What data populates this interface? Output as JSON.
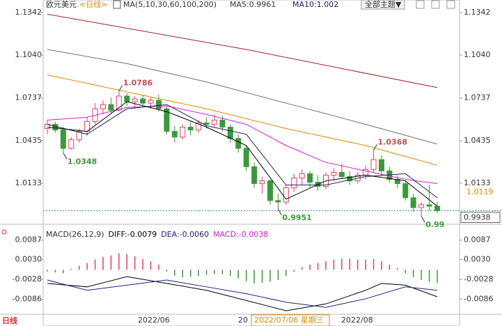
{
  "chart_data": {
    "type": "candlestick",
    "title": "欧元美元",
    "period_tag": "<日线>",
    "ma_header": [
      "MA(5,10,30,60,100,200)",
      "MA5:0.9961",
      "MA10:1.002"
    ],
    "theme_button": "全部主题▼",
    "ylim": [
      0.9911,
      1.1381
    ],
    "yticks": [
      1.0133,
      1.0435,
      1.0737,
      {
        "value": 1.104,
        "label": "1.1040"
      },
      1.1342
    ],
    "up_color": "#e04060",
    "down_color": "#3a9a3a",
    "candles": [
      [
        1.052,
        1.058,
        1.048,
        1.055
      ],
      [
        1.055,
        1.057,
        1.049,
        1.051
      ],
      [
        1.051,
        1.053,
        1.0348,
        1.038
      ],
      [
        1.038,
        1.046,
        1.037,
        1.044
      ],
      [
        1.044,
        1.052,
        1.042,
        1.05
      ],
      [
        1.05,
        1.06,
        1.047,
        1.057
      ],
      [
        1.057,
        1.07,
        1.055,
        1.066
      ],
      [
        1.066,
        1.072,
        1.062,
        1.069
      ],
      [
        1.069,
        1.074,
        1.063,
        1.065
      ],
      [
        1.065,
        1.0786,
        1.064,
        1.075
      ],
      [
        1.075,
        1.077,
        1.068,
        1.071
      ],
      [
        1.071,
        1.075,
        1.066,
        1.073
      ],
      [
        1.073,
        1.076,
        1.068,
        1.07
      ],
      [
        1.07,
        1.074,
        1.066,
        1.072
      ],
      [
        1.072,
        1.076,
        1.064,
        1.066
      ],
      [
        1.066,
        1.068,
        1.048,
        1.05
      ],
      [
        1.05,
        1.054,
        1.042,
        1.046
      ],
      [
        1.046,
        1.055,
        1.044,
        1.053
      ],
      [
        1.053,
        1.057,
        1.047,
        1.051
      ],
      [
        1.051,
        1.058,
        1.049,
        1.056
      ],
      [
        1.056,
        1.06,
        1.052,
        1.055
      ],
      [
        1.055,
        1.062,
        1.053,
        1.058
      ],
      [
        1.058,
        1.061,
        1.05,
        1.053
      ],
      [
        1.053,
        1.055,
        1.042,
        1.045
      ],
      [
        1.045,
        1.048,
        1.035,
        1.038
      ],
      [
        1.038,
        1.04,
        1.022,
        1.025
      ],
      [
        1.025,
        1.028,
        1.01,
        1.013
      ],
      [
        1.013,
        1.018,
        1.006,
        1.015
      ],
      [
        1.015,
        1.016,
        0.998,
        1.001
      ],
      [
        1.001,
        1.006,
        0.9951,
        1.0
      ],
      [
        1.0,
        1.012,
        0.998,
        1.01
      ],
      [
        1.01,
        1.02,
        1.007,
        1.017
      ],
      [
        1.017,
        1.023,
        1.012,
        1.02
      ],
      [
        1.02,
        1.022,
        1.01,
        1.014
      ],
      [
        1.014,
        1.019,
        1.008,
        1.011
      ],
      [
        1.011,
        1.021,
        1.009,
        1.019
      ],
      [
        1.019,
        1.024,
        1.015,
        1.021
      ],
      [
        1.021,
        1.027,
        1.016,
        1.018
      ],
      [
        1.018,
        1.022,
        1.012,
        1.015
      ],
      [
        1.015,
        1.021,
        1.013,
        1.019
      ],
      [
        1.019,
        1.026,
        1.016,
        1.023
      ],
      [
        1.023,
        1.0368,
        1.021,
        1.03
      ],
      [
        1.03,
        1.033,
        1.019,
        1.022
      ],
      [
        1.022,
        1.025,
        1.014,
        1.016
      ],
      [
        1.016,
        1.019,
        1.01,
        1.013
      ],
      [
        1.013,
        1.015,
        1.001,
        1.003
      ],
      [
        1.003,
        1.006,
        0.993,
        0.996
      ],
      [
        0.996,
        1.0,
        0.99,
        0.998
      ],
      [
        0.998,
        1.012,
        0.994,
        0.997
      ],
      [
        0.997,
        1.0,
        0.992,
        0.9938
      ]
    ],
    "ma_lines": [
      {
        "color": "#a02020",
        "x": [
          0,
          25,
          49
        ],
        "values": [
          1.133,
          1.108,
          1.081
        ]
      },
      {
        "color": "#707070",
        "x": [
          0,
          10,
          20,
          30,
          40,
          49
        ],
        "values": [
          1.108,
          1.098,
          1.085,
          1.07,
          1.055,
          1.041
        ]
      },
      {
        "color": "#e08a00",
        "x": [
          0,
          10,
          20,
          30,
          40,
          49
        ],
        "values": [
          1.09,
          1.078,
          1.066,
          1.052,
          1.04,
          1.026
        ]
      },
      {
        "color": "#d020d0",
        "x": [
          0,
          5,
          10,
          15,
          20,
          25,
          30,
          35,
          40,
          45,
          49
        ],
        "values": [
          1.058,
          1.06,
          1.067,
          1.068,
          1.062,
          1.055,
          1.04,
          1.028,
          1.022,
          1.016,
          1.013
        ]
      },
      {
        "color": "#202060",
        "x": [
          0,
          5,
          10,
          15,
          20,
          25,
          30,
          35,
          40,
          45,
          49
        ],
        "values": [
          1.055,
          1.048,
          1.066,
          1.069,
          1.054,
          1.048,
          1.012,
          1.012,
          1.018,
          1.02,
          1.003
        ]
      },
      {
        "color": "#000000",
        "x": [
          0,
          5,
          10,
          15,
          20,
          25,
          30,
          35,
          40,
          45,
          49
        ],
        "values": [
          1.053,
          1.05,
          1.071,
          1.064,
          1.053,
          1.04,
          1.002,
          1.015,
          1.019,
          1.015,
          0.997
        ]
      }
    ],
    "annotations": [
      {
        "value": 1.0786,
        "color": "#c0504d",
        "side": "high"
      },
      {
        "value": 1.0348,
        "color": "#3a9a3a",
        "side": "low"
      },
      {
        "value": 0.9951,
        "color": "#3a9a3a",
        "side": "low"
      },
      {
        "value": 1.0368,
        "color": "#c0504d",
        "side": "high"
      },
      {
        "value": 0.99,
        "color": "#3a9a3a",
        "side": "low"
      }
    ],
    "ma_right_label": {
      "value": 1.0119,
      "color": "#e08a00"
    },
    "last_price": {
      "value": 0.9938,
      "color": "#3a8fb0"
    },
    "macd": {
      "header": [
        {
          "text": "MACD(26,12,9)",
          "color": "#333333"
        },
        {
          "text": "DIFF:-0.0079",
          "color": "#000000"
        },
        {
          "text": "DEA:-0.0060",
          "color": "#202080"
        },
        {
          "text": "MACD:-0.0038",
          "color": "#d020d0"
        }
      ],
      "ylim": [
        -0.0128,
        0.0113
      ],
      "yticks": [
        -0.0086,
        -0.0028,
        {
          "value": 0.003,
          "label": "0.0030"
        },
        0.0087
      ],
      "hist": [
        -0.0005,
        -0.0008,
        -0.001,
        0.0003,
        0.0012,
        0.002,
        0.003,
        0.0038,
        0.0042,
        0.0048,
        0.0046,
        0.004,
        0.0032,
        0.0025,
        0.0015,
        -0.0005,
        -0.0018,
        -0.0022,
        -0.002,
        -0.0018,
        -0.0015,
        -0.0012,
        -0.0013,
        -0.0018,
        -0.0025,
        -0.0033,
        -0.004,
        -0.0038,
        -0.0035,
        -0.003,
        -0.0018,
        -0.0005,
        0.0008,
        0.0015,
        0.002,
        0.0025,
        0.003,
        0.0033,
        0.0032,
        0.003,
        0.003,
        0.0032,
        0.0025,
        0.0015,
        0.0005,
        -0.001,
        -0.0022,
        -0.003,
        -0.0035,
        -0.0038
      ],
      "lines": [
        {
          "color": "#000000",
          "x": [
            0,
            5,
            10,
            15,
            20,
            25,
            30,
            35,
            40,
            42,
            45,
            49
          ],
          "values": [
            -0.004,
            -0.005,
            -0.002,
            -0.004,
            -0.006,
            -0.009,
            -0.012,
            -0.01,
            -0.006,
            -0.004,
            -0.0045,
            -0.0079
          ]
        },
        {
          "color": "#202080",
          "x": [
            0,
            5,
            10,
            15,
            20,
            25,
            30,
            35,
            40,
            45,
            49
          ],
          "values": [
            -0.003,
            -0.006,
            -0.0045,
            -0.003,
            -0.005,
            -0.007,
            -0.0095,
            -0.011,
            -0.0085,
            -0.005,
            -0.006
          ]
        }
      ]
    },
    "period_label": "日线",
    "date_labels": [
      "2022/06",
      "20",
      "2022/07/06 星期三",
      "2022/08"
    ]
  }
}
